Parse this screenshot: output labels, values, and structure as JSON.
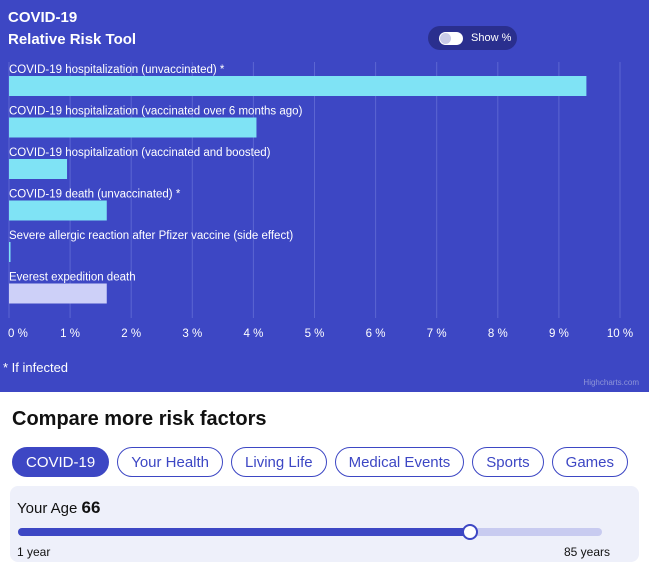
{
  "chart_data": {
    "type": "bar",
    "orientation": "horizontal",
    "title": "COVID-19",
    "subtitle": "Relative Risk Tool",
    "categories": [
      "COVID-19 hospitalization (unvaccinated) *",
      "COVID-19 hospitalization (vaccinated over 6 months ago)",
      "COVID-19 hospitalization (vaccinated and boosted)",
      "COVID-19 death (unvaccinated) *",
      "Severe allergic reaction after Pfizer vaccine (side effect)",
      "Everest expedition death"
    ],
    "values": [
      9.45,
      4.05,
      0.95,
      1.6,
      0.02,
      1.6
    ],
    "bar_colors": [
      "#7fe3f5",
      "#7fe3f5",
      "#7fe3f5",
      "#7fe3f5",
      "#7fe3f5",
      "#cdd0f8"
    ],
    "xlim": [
      0,
      10
    ],
    "x_ticks": [
      "0 %",
      "1 %",
      "2 %",
      "3 %",
      "4 %",
      "5 %",
      "6 %",
      "7 %",
      "8 %",
      "9 %",
      "10 %"
    ],
    "grid": true,
    "footnote": "* If infected",
    "credits": "Highcharts.com"
  },
  "toggle": {
    "label": "Show %"
  },
  "compare": {
    "title": "Compare more risk factors",
    "tabs": [
      "COVID-19",
      "Your Health",
      "Living Life",
      "Medical Events",
      "Sports",
      "Games"
    ],
    "active_tab": 0,
    "age": {
      "label": "Your Age",
      "value": "66",
      "min": 1,
      "max": 85,
      "current": 66,
      "min_label": "1 year",
      "max_label": "85 years"
    }
  },
  "colors": {
    "panel": "#3d47c4",
    "bar": "#7fe3f5",
    "bar_alt": "#cdd0f8",
    "accent": "#3d47c4"
  }
}
